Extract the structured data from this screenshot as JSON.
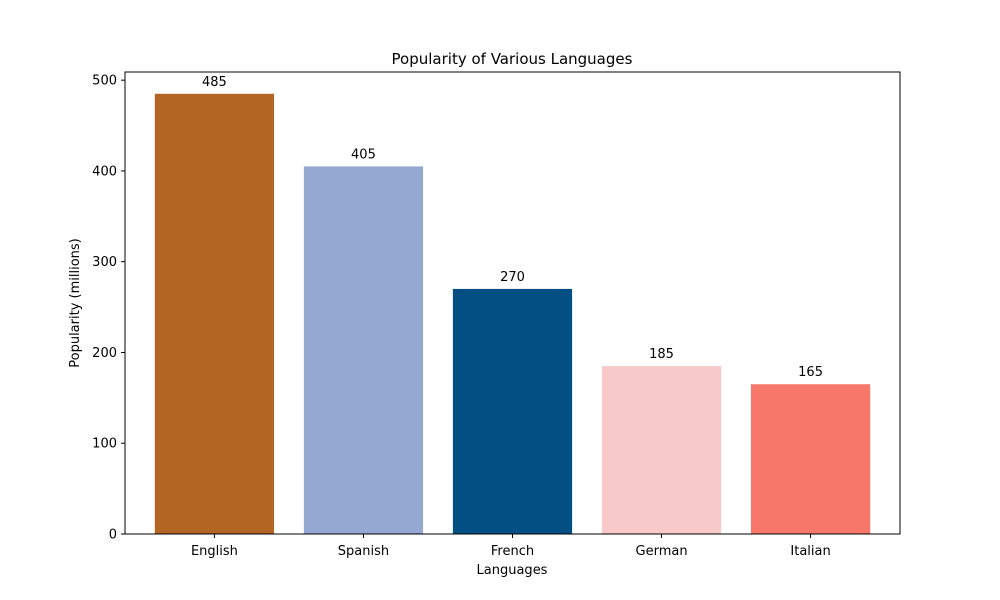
{
  "chart_data": {
    "type": "bar",
    "title": "Popularity of Various Languages",
    "xlabel": "Languages",
    "ylabel": "Popularity (millions)",
    "categories": [
      "English",
      "Spanish",
      "French",
      "German",
      "Italian"
    ],
    "values": [
      485,
      405,
      270,
      185,
      165
    ],
    "value_labels": [
      "485",
      "405",
      "270",
      "185",
      "165"
    ],
    "colors": [
      "#b36522",
      "#94a8d1",
      "#034f84",
      "#f7cac9",
      "#f7786b"
    ],
    "ylim": [
      0,
      509
    ],
    "yticks": [
      0,
      100,
      200,
      300,
      400,
      500
    ],
    "ytick_labels": [
      "0",
      "100",
      "200",
      "300",
      "400",
      "500"
    ],
    "grid": false,
    "legend": "none"
  }
}
